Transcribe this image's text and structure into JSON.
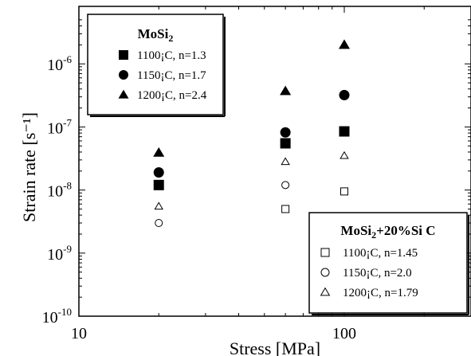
{
  "chart_data": {
    "type": "scatter",
    "xscale": "log",
    "yscale": "log",
    "xlim": [
      10,
      200
    ],
    "ylim": [
      1e-10,
      5e-06
    ],
    "xlabel": "Stress [MPa]",
    "ylabel": "Strain rate [s⁻¹]",
    "x_ticks": [
      {
        "value": 10,
        "label": "10"
      },
      {
        "value": 100,
        "label": "100"
      }
    ],
    "y_ticks": [
      {
        "value": 1e-10,
        "base": "10",
        "exp": "-10"
      },
      {
        "value": 1e-09,
        "base": "10",
        "exp": "-9"
      },
      {
        "value": 1e-08,
        "base": "10",
        "exp": "-8"
      },
      {
        "value": 1e-07,
        "base": "10",
        "exp": "-7"
      },
      {
        "value": 1e-06,
        "base": "10",
        "exp": "-6"
      }
    ],
    "legends": [
      {
        "title": "MoSi",
        "title_sub": "2",
        "title_rest": "",
        "position": "top-left",
        "entries": [
          {
            "label": "1100¡C, n=1.3",
            "marker": "square",
            "filled": true
          },
          {
            "label": "1150¡C, n=1.7",
            "marker": "circle",
            "filled": true
          },
          {
            "label": "1200¡C, n=2.4",
            "marker": "triangle",
            "filled": true
          }
        ]
      },
      {
        "title": "MoSi",
        "title_sub": "2",
        "title_rest": "+20%Si C",
        "position": "bottom-right",
        "entries": [
          {
            "label": "1100¡C, n=1.45",
            "marker": "square",
            "filled": false
          },
          {
            "label": "1150¡C, n=2.0",
            "marker": "circle",
            "filled": false
          },
          {
            "label": "1200¡C, n=1.79",
            "marker": "triangle",
            "filled": false
          }
        ]
      }
    ],
    "series": [
      {
        "name": "MoSi2 1100¡C, n=1.3",
        "marker": "square",
        "filled": true,
        "points": [
          [
            20,
            1.2e-08
          ],
          [
            60,
            5.5e-08
          ],
          [
            100,
            8.5e-08
          ]
        ]
      },
      {
        "name": "MoSi2 1150¡C, n=1.7",
        "marker": "circle",
        "filled": true,
        "points": [
          [
            20,
            1.9e-08
          ],
          [
            60,
            8.2e-08
          ],
          [
            100,
            3.2e-07
          ]
        ]
      },
      {
        "name": "MoSi2 1200¡C, n=2.4",
        "marker": "triangle",
        "filled": true,
        "points": [
          [
            20,
            3.9e-08
          ],
          [
            60,
            3.7e-07
          ],
          [
            100,
            2e-06
          ]
        ]
      },
      {
        "name": "MoSi2+20%SiC 1100¡C, n=1.45",
        "marker": "square",
        "filled": false,
        "points": [
          [
            60,
            5e-09
          ],
          [
            100,
            9.5e-09
          ]
        ]
      },
      {
        "name": "MoSi2+20%SiC 1150¡C, n=2.0",
        "marker": "circle",
        "filled": false,
        "points": [
          [
            20,
            3e-09
          ],
          [
            60,
            1.2e-08
          ]
        ]
      },
      {
        "name": "MoSi2+20%SiC 1200¡C, n=1.79",
        "marker": "triangle",
        "filled": false,
        "points": [
          [
            20,
            5.5e-09
          ],
          [
            60,
            2.8e-08
          ],
          [
            100,
            3.5e-08
          ]
        ]
      }
    ]
  }
}
